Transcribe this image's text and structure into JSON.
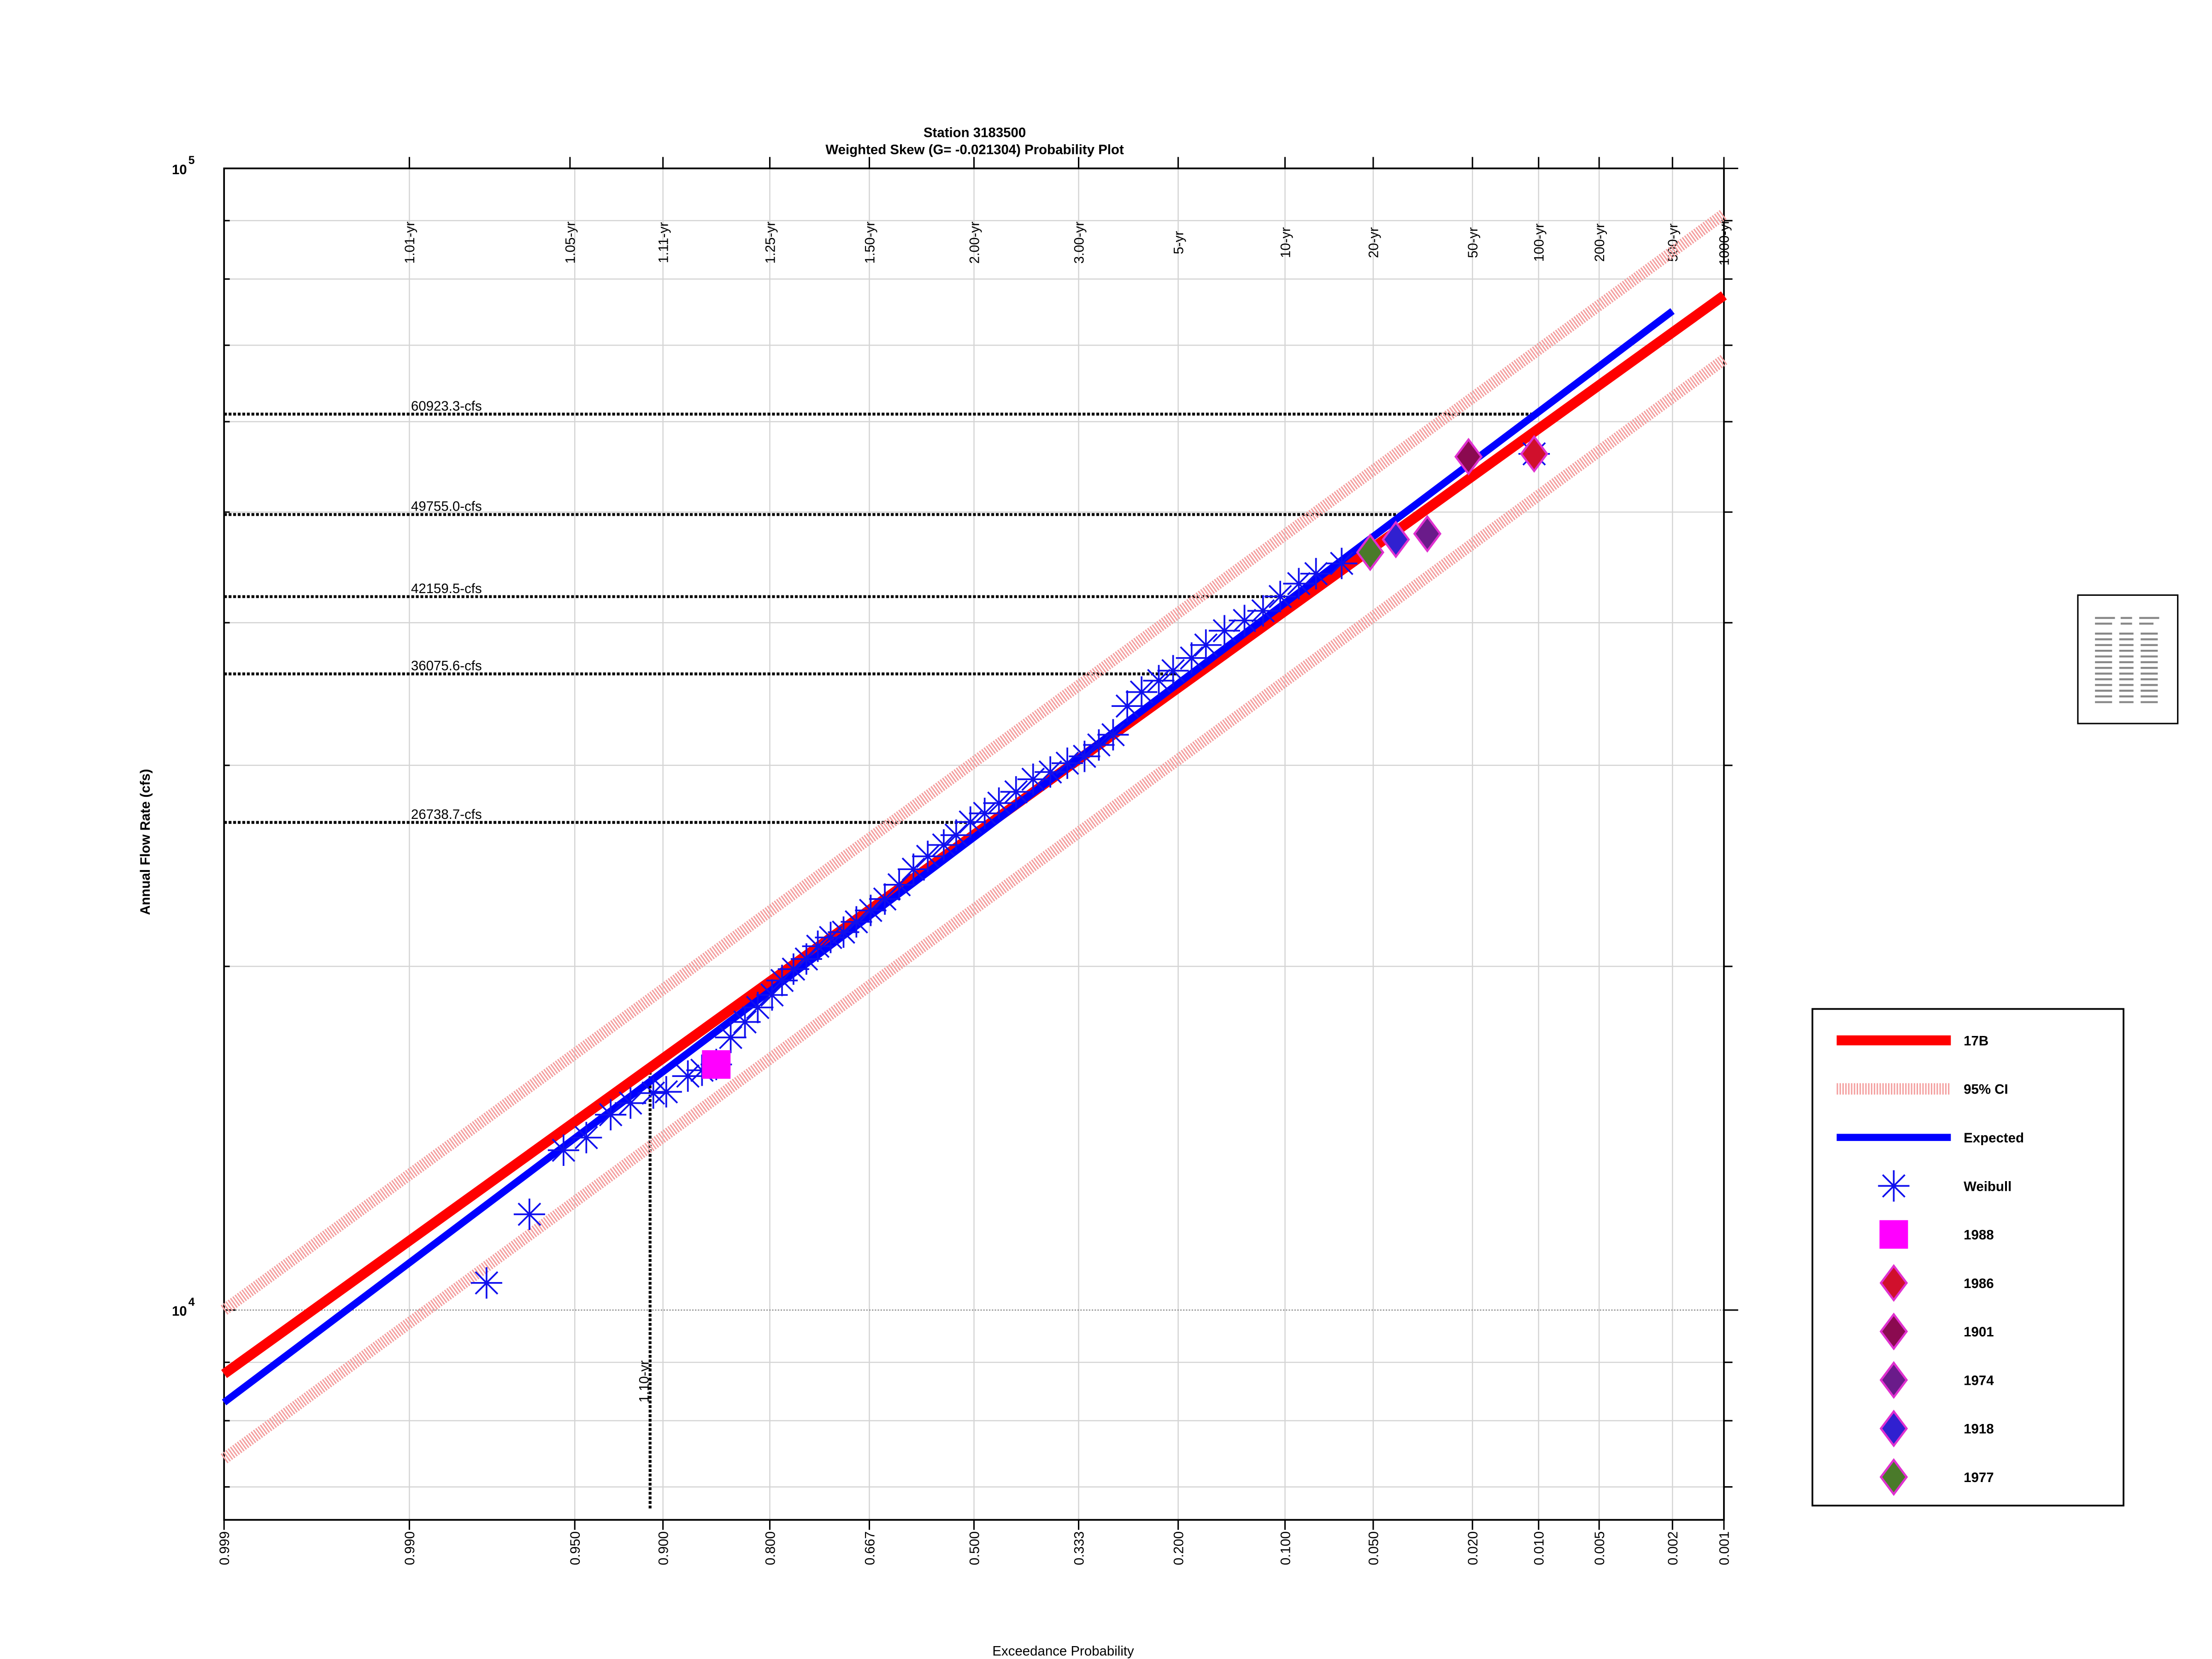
{
  "chart_data": {
    "type": "probability",
    "title": "Station 3183500",
    "subtitle": "Weighted Skew (G= -0.021304) Probability Plot",
    "xlabel": "Exceedance Probability",
    "ylabel": "Annual Flow Rate (cfs)",
    "xscale": "probability",
    "yscale": "log",
    "grid": true,
    "xlim": [
      0.999,
      0.001
    ],
    "ylim": [
      6550,
      100000
    ],
    "xticks": [
      0.999,
      {
        "value": 0.99,
        "label": "0.990"
      },
      {
        "value": 0.95,
        "label": "0.950"
      },
      {
        "value": 0.9,
        "label": "0.900"
      },
      {
        "value": 0.8,
        "label": "0.800"
      },
      0.667,
      {
        "value": 0.5,
        "label": "0.500"
      },
      0.333,
      {
        "value": 0.2,
        "label": "0.200"
      },
      {
        "value": 0.1,
        "label": "0.100"
      },
      {
        "value": 0.05,
        "label": "0.050"
      },
      {
        "value": 0.02,
        "label": "0.020"
      },
      {
        "value": 0.01,
        "label": "0.010"
      },
      0.005,
      0.002,
      0.001
    ],
    "x2ticks": [
      {
        "value": 0.99,
        "label": "1.01-yr"
      },
      {
        "value": 0.952,
        "label": "1.05-yr"
      },
      {
        "value": 0.9,
        "label": "1.11-yr"
      },
      {
        "value": 0.8,
        "label": "1.25-yr"
      },
      {
        "value": 0.667,
        "label": "1.50-yr"
      },
      {
        "value": 0.5,
        "label": "2.00-yr"
      },
      {
        "value": 0.333,
        "label": "3.00-yr"
      },
      {
        "value": 0.2,
        "label": "5-yr"
      },
      {
        "value": 0.1,
        "label": "10-yr"
      },
      {
        "value": 0.05,
        "label": "20-yr"
      },
      {
        "value": 0.02,
        "label": "50-yr"
      },
      {
        "value": 0.01,
        "label": "100-yr"
      },
      {
        "value": 0.005,
        "label": "200-yr"
      },
      {
        "value": 0.002,
        "label": "500-yr"
      },
      {
        "value": 0.001,
        "label": "1000-yr"
      }
    ],
    "yticks": [
      {
        "value": 10000,
        "label": "10",
        "exponent": "4"
      },
      {
        "value": 100000,
        "label": "10",
        "exponent": "5"
      }
    ],
    "yminor": [
      7000,
      8000,
      9000,
      20000,
      30000,
      40000,
      50000,
      60000,
      70000,
      80000,
      90000
    ],
    "annotations": [
      {
        "label": "60923.3-cfs",
        "value": 60923.3,
        "x": 0.01,
        "orientation": "horizontal"
      },
      {
        "label": "49755.0-cfs",
        "value": 49755.0,
        "x": 0.04,
        "orientation": "horizontal"
      },
      {
        "label": "42159.5-cfs",
        "value": 42159.5,
        "x": 0.1,
        "orientation": "horizontal"
      },
      {
        "label": "36075.6-cfs",
        "value": 36075.6,
        "x": 0.2,
        "orientation": "horizontal"
      },
      {
        "label": "26738.7-cfs",
        "value": 26738.7,
        "x": 0.5,
        "orientation": "horizontal"
      },
      {
        "label": "1.10-yr",
        "value": 16218,
        "x": 0.909,
        "orientation": "vertical"
      }
    ],
    "series": [
      {
        "name": "17B",
        "style": "line",
        "color": "#ff0000",
        "x": [
          0.999,
          0.001
        ],
        "values": [
          8790,
          77400
        ]
      },
      {
        "name": "95% CI",
        "style": "band",
        "color": "#f4a0a0",
        "x": [
          0.999,
          0.001
        ],
        "values": [
          7410,
          68000
        ],
        "upper": [
          10000,
          91200
        ]
      },
      {
        "name": "Expected",
        "style": "line",
        "color": "#0000ff",
        "x": [
          0.999,
          0.002
        ],
        "values": [
          8300,
          75000
        ]
      },
      {
        "name": "Weibull",
        "style": "asterisk",
        "color": "#1010ee",
        "x": [
          0.9777,
          0.9665,
          0.9546,
          0.9449,
          0.9328,
          0.9215,
          0.9068,
          0.8976,
          0.8808,
          0.8688,
          0.8559,
          0.842,
          0.8274,
          0.8136,
          0.7974,
          0.7856,
          0.7716,
          0.7552,
          0.7402,
          0.7228,
          0.7047,
          0.6862,
          0.665,
          0.6435,
          0.6213,
          0.5987,
          0.5757,
          0.5497,
          0.5293,
          0.5059,
          0.4824,
          0.459,
          0.4311,
          0.4036,
          0.3764,
          0.3501,
          0.3242,
          0.3033,
          0.2831,
          0.2637,
          0.2448,
          0.2231,
          0.2059,
          0.1849,
          0.1696,
          0.151,
          0.1325,
          0.1168,
          0.1035,
          0.0904,
          0.0794,
          0.0649,
          0.0105
        ],
        "values": [
          10563,
          12131,
          13804,
          14160,
          14830,
          15180,
          15490,
          15530,
          16030,
          16220,
          16410,
          17330,
          17880,
          18410,
          18880,
          19440,
          19890,
          20300,
          20830,
          21200,
          21430,
          21880,
          22390,
          22910,
          23580,
          24330,
          24970,
          25550,
          26060,
          26760,
          27230,
          27800,
          28440,
          29170,
          29600,
          30130,
          30550,
          31260,
          31910,
          33810,
          34780,
          35590,
          36310,
          37250,
          38240,
          39360,
          40180,
          40970,
          42170,
          43280,
          44160,
          45080,
          56230
        ]
      },
      {
        "name": "1988",
        "style": "square",
        "color": "#ff00ff",
        "x": [
          0.8559
        ],
        "values": [
          16410
        ]
      },
      {
        "name": "1986",
        "style": "diamond",
        "color": "#d0102c",
        "edgecolor": "#e030d0",
        "x": [
          0.0105
        ],
        "values": [
          56230
        ]
      },
      {
        "name": "1901",
        "style": "diamond",
        "color": "#8b0a50",
        "edgecolor": "#e030d0",
        "x": [
          0.0208
        ],
        "values": [
          55910
        ]
      },
      {
        "name": "1974",
        "style": "diamond",
        "color": "#6a1b8a",
        "edgecolor": "#e030d0",
        "x": [
          0.0309
        ],
        "values": [
          47860
        ]
      },
      {
        "name": "1918",
        "style": "diamond",
        "color": "#3020d0",
        "edgecolor": "#e030d0",
        "x": [
          0.0411
        ],
        "values": [
          47310
        ]
      },
      {
        "name": "1977",
        "style": "diamond",
        "color": "#4a7a2a",
        "edgecolor": "#e030d0",
        "x": [
          0.0513
        ],
        "values": [
          46100
        ]
      }
    ]
  }
}
